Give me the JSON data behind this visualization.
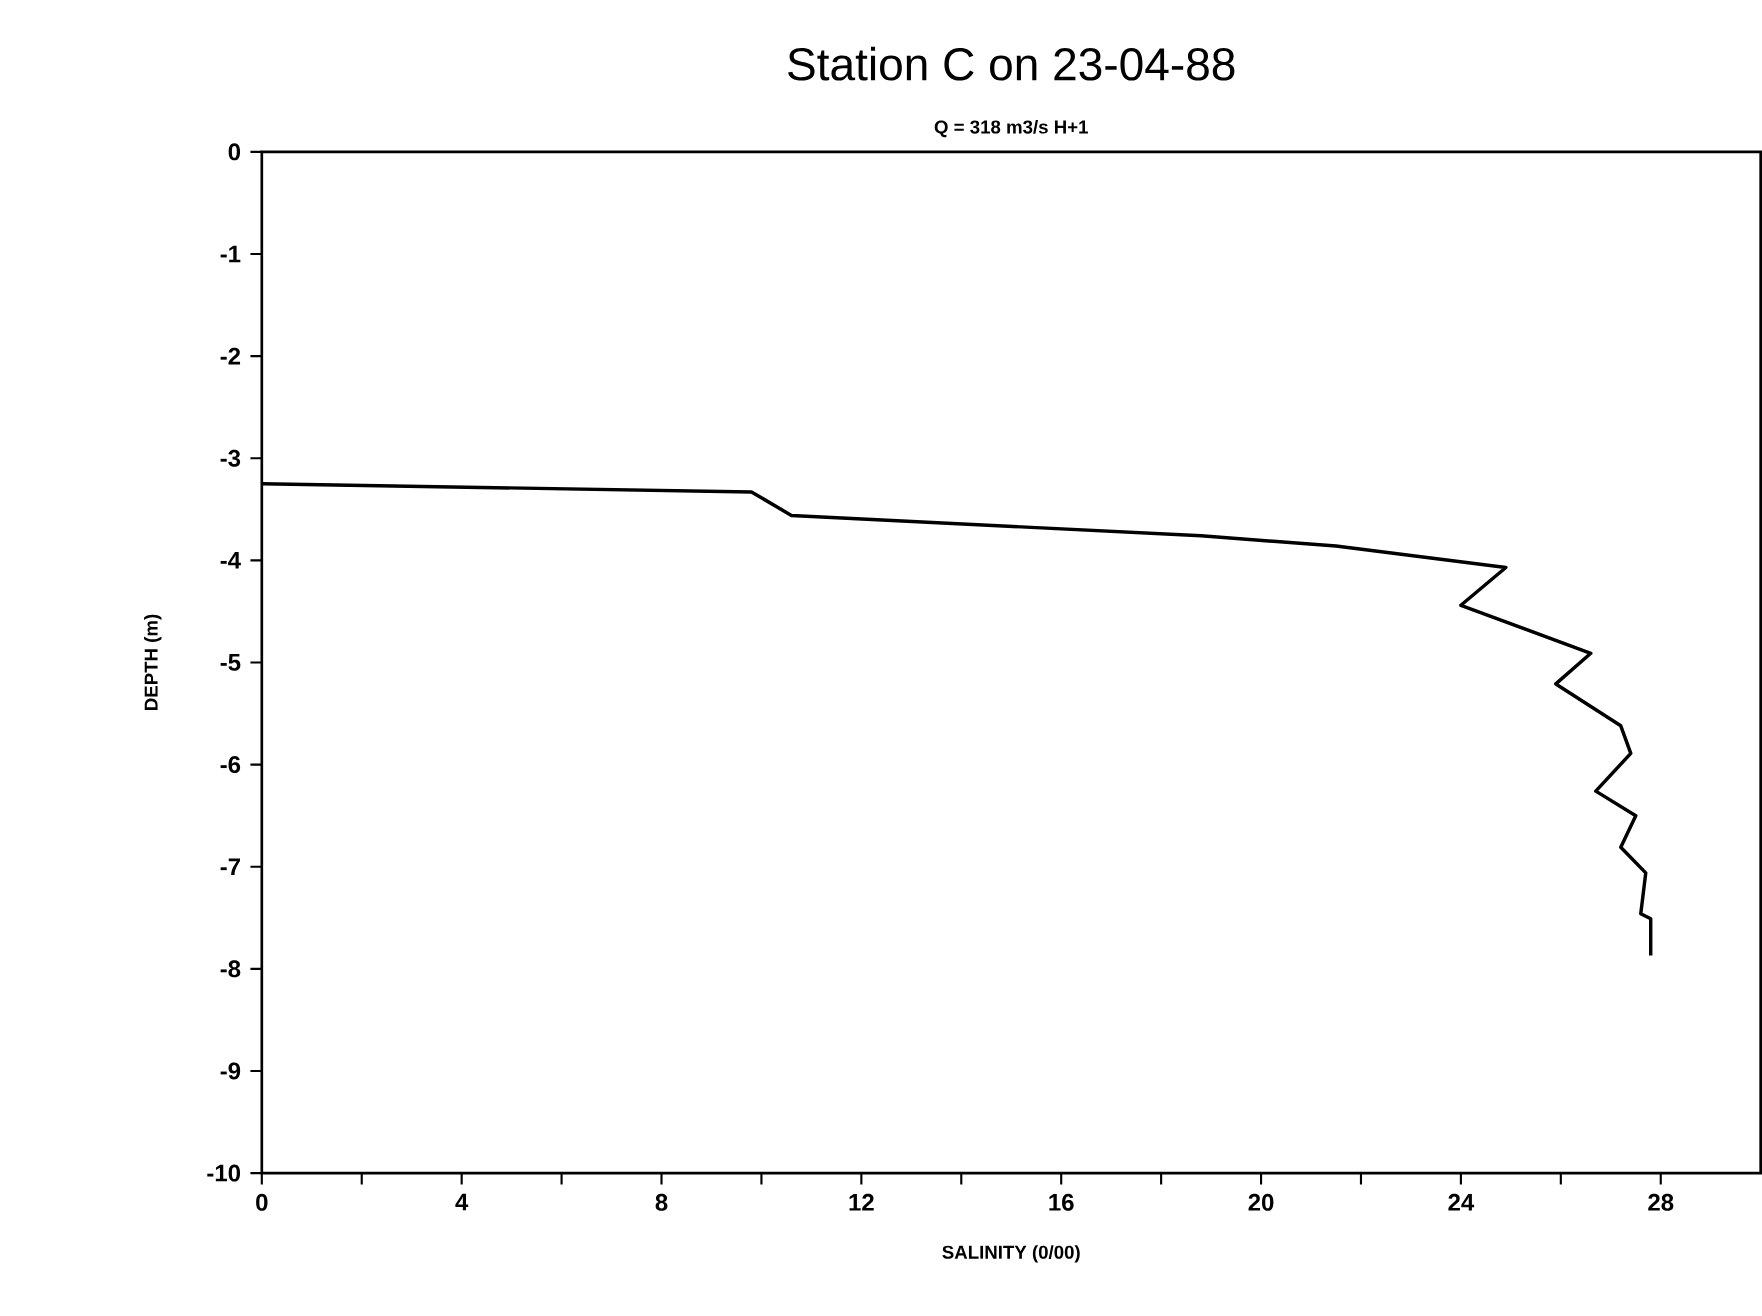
{
  "chart_data": {
    "type": "line",
    "title": "Station C on 23-04-88",
    "subtitle": "Q = 318 m3/s  H+1",
    "xlabel": "SALINITY (0/00)",
    "ylabel": "DEPTH (m)",
    "x": [
      0,
      9.8,
      10.6,
      18.8,
      21.5,
      24.9,
      24.0,
      26.6,
      25.9,
      27.2,
      27.4,
      26.7,
      27.5,
      27.2,
      27.7,
      27.6,
      27.8,
      27.8
    ],
    "series": [
      {
        "color": "#000000",
        "values": [
          -3.25,
          -3.33,
          -3.56,
          -3.76,
          -3.86,
          -4.07,
          -4.44,
          -4.91,
          -5.21,
          -5.62,
          -5.89,
          -6.26,
          -6.5,
          -6.81,
          -7.06,
          -7.46,
          -7.51,
          -7.87
        ]
      }
    ],
    "xlim": [
      0,
      30
    ],
    "ylim": [
      -10,
      0
    ],
    "xticks": [
      0,
      {
        "value": 2,
        "label": null
      },
      4,
      {
        "value": 6,
        "label": null
      },
      8,
      {
        "value": 10,
        "label": null
      },
      12,
      {
        "value": 14,
        "label": null
      },
      16,
      {
        "value": 18,
        "label": null
      },
      20,
      {
        "value": 22,
        "label": null
      },
      24,
      {
        "value": 26,
        "label": null
      },
      28
    ],
    "yticks": [
      -10,
      -9,
      -8,
      -7,
      -6,
      -5,
      -4,
      -3,
      -2,
      -1,
      0
    ],
    "marker": "none",
    "line_style": "solid"
  }
}
